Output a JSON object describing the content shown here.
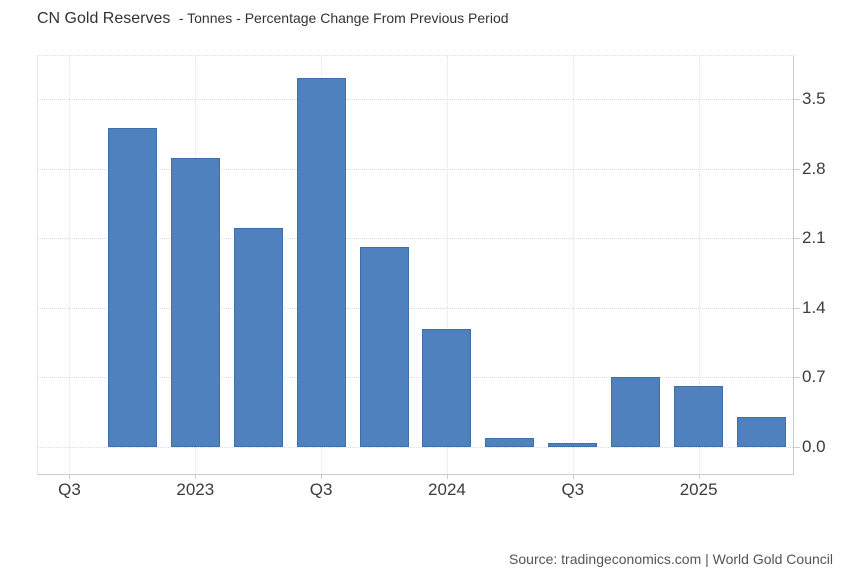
{
  "header": {
    "title": "CN Gold Reserves",
    "subtitle": "- Tonnes - Percentage Change From Previous Period"
  },
  "footer": {
    "source": "Source: tradingeconomics.com | World Gold Council"
  },
  "colors": {
    "bar_fill": "#4e81bd",
    "bar_border": "#3f6fa6",
    "grid_line": "#dedede",
    "axis_line": "#cccccc",
    "title_text": "#333333",
    "axis_text": "#3c3c3c",
    "source_text": "#555555",
    "background": "#ffffff"
  },
  "chart_data": {
    "type": "bar",
    "title": "CN Gold Reserves - Tonnes - Percentage Change From Previous Period",
    "ylabel": "",
    "xlabel": "",
    "categories": [
      "2022-Q3",
      "2022-Q4",
      "2023-Q1",
      "2023-Q2",
      "2023-Q3",
      "2023-Q4",
      "2024-Q1",
      "2024-Q2",
      "2024-Q3",
      "2024-Q4",
      "2025-Q1",
      "2025-Q2"
    ],
    "values": [
      0,
      3.21,
      2.91,
      2.21,
      3.72,
      2.01,
      1.19,
      0.09,
      0.04,
      0.71,
      0.61,
      0.3
    ],
    "series_name": "CN Gold Reserves percentage change",
    "x_axis": {
      "tick_labels": [
        "Q3",
        "2023",
        "Q3",
        "2024",
        "Q3",
        "2025"
      ],
      "tick_category_indexes": [
        0,
        2,
        4,
        6,
        8,
        10
      ]
    },
    "y_axis": {
      "tick_labels": [
        "0.0",
        "0.7",
        "1.4",
        "2.1",
        "2.8",
        "3.5"
      ],
      "tick_values": [
        0,
        0.7,
        1.4,
        2.1,
        2.8,
        3.5
      ],
      "position": "right",
      "min": -0.27,
      "max": 3.93
    },
    "grid": "dotted",
    "legend": "none",
    "bar_color": "#4e81bd"
  }
}
